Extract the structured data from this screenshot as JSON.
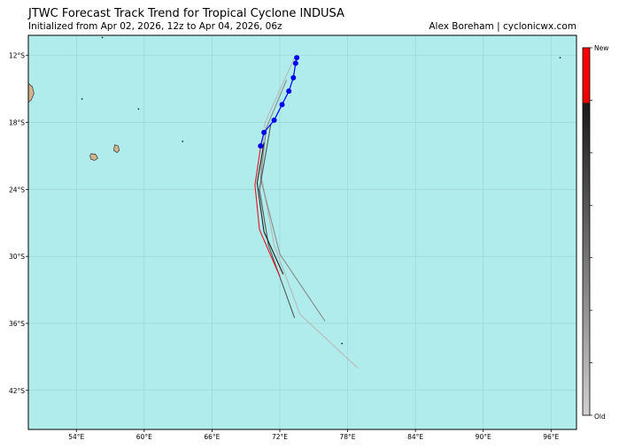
{
  "header": {
    "title": "JTWC Forecast Track Trend for Tropical Cyclone INDUSA",
    "subtitle": "Initialized from Apr 02, 2026, 12z to Apr 04, 2026, 06z",
    "credit": "Alex Boreham | cyclonicwx.com"
  },
  "colors": {
    "ocean": "#b0ecec",
    "land": "#d2b48c",
    "grid": "#9ccfcf",
    "observed_track": "#0000ee",
    "newest_forecast": "#e8141e",
    "older_forecast": "#2a2a2a",
    "oldest_forecast": "#b8b8b8"
  },
  "chart_data": {
    "type": "map-track",
    "x_axis": {
      "range": [
        49.75,
        98.25
      ],
      "ticks": [
        54,
        60,
        66,
        72,
        78,
        84,
        90,
        96
      ],
      "tick_labels": [
        "54°E",
        "60°E",
        "66°E",
        "72°E",
        "78°E",
        "84°E",
        "90°E",
        "96°E"
      ]
    },
    "y_axis": {
      "range": [
        -45.5,
        -10.2
      ],
      "ticks": [
        -12,
        -18,
        -24,
        -30,
        -36,
        -42
      ],
      "tick_labels": [
        "12°S",
        "18°S",
        "24°S",
        "30°S",
        "36°S",
        "42°S"
      ]
    },
    "grid": true,
    "colorbar": {
      "top_label": "New",
      "bottom_label": "Old",
      "placement": "right"
    },
    "forecast_tracks": [
      {
        "age": 1.0,
        "color": "#e8141e",
        "points": [
          [
            70.3,
            -20.2
          ],
          [
            69.8,
            -23.6
          ],
          [
            70.2,
            -27.6
          ],
          [
            72.0,
            -31.8
          ]
        ]
      },
      {
        "age": 0.8,
        "color": "#222222",
        "points": [
          [
            70.6,
            -19.8
          ],
          [
            70.0,
            -23.4
          ],
          [
            70.6,
            -27.8
          ],
          [
            72.3,
            -31.6
          ]
        ]
      },
      {
        "age": 0.6,
        "color": "#555555",
        "points": [
          [
            71.2,
            -18.2
          ],
          [
            70.2,
            -24.0
          ],
          [
            71.0,
            -29.0
          ],
          [
            73.3,
            -35.5
          ]
        ]
      },
      {
        "age": 0.4,
        "color": "#8a8a8a",
        "points": [
          [
            72.6,
            -14.2
          ],
          [
            70.8,
            -18.5
          ],
          [
            70.3,
            -23.0
          ],
          [
            72.0,
            -29.8
          ],
          [
            76.0,
            -35.8
          ]
        ]
      },
      {
        "age": 0.2,
        "color": "#b8b8b8",
        "points": [
          [
            73.3,
            -12.2
          ],
          [
            70.7,
            -18.0
          ],
          [
            70.3,
            -22.5
          ],
          [
            71.5,
            -29.0
          ],
          [
            73.8,
            -35.2
          ],
          [
            78.9,
            -40.0
          ]
        ]
      }
    ],
    "observed_track": {
      "color": "#0000ee",
      "points": [
        [
          73.5,
          -12.2
        ],
        [
          73.4,
          -12.7
        ],
        [
          73.2,
          -14.0
        ],
        [
          72.8,
          -15.2
        ],
        [
          72.2,
          -16.4
        ],
        [
          71.5,
          -17.8
        ],
        [
          70.6,
          -18.9
        ],
        [
          70.3,
          -20.1
        ]
      ]
    },
    "landmasses": [
      {
        "name": "",
        "points": [
          [
            55.3,
            -20.8
          ],
          [
            55.7,
            -20.85
          ],
          [
            55.9,
            -21.2
          ],
          [
            55.6,
            -21.4
          ],
          [
            55.3,
            -21.3
          ],
          [
            55.2,
            -21.0
          ]
        ]
      },
      {
        "name": "",
        "points": [
          [
            57.4,
            -20.0
          ],
          [
            57.7,
            -20.1
          ],
          [
            57.8,
            -20.5
          ],
          [
            57.6,
            -20.7
          ],
          [
            57.3,
            -20.5
          ]
        ]
      },
      {
        "name": "",
        "points": [
          [
            49.75,
            -14.5
          ],
          [
            50.1,
            -14.8
          ],
          [
            50.25,
            -15.4
          ],
          [
            50.0,
            -16.0
          ],
          [
            49.75,
            -16.2
          ]
        ]
      }
    ],
    "islets": [
      [
        63.4,
        -19.7
      ],
      [
        77.5,
        -37.8
      ],
      [
        56.3,
        -10.4
      ],
      [
        96.8,
        -12.2
      ],
      [
        54.5,
        -15.9
      ],
      [
        59.5,
        -16.8
      ]
    ]
  }
}
